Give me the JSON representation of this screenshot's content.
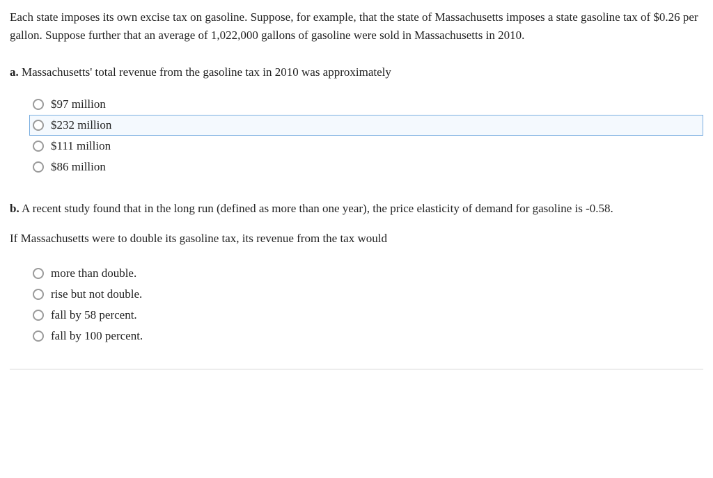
{
  "intro": "Each state imposes its own excise tax on gasoline. Suppose, for example, that the state of Massachusetts imposes a state gasoline tax of $0.26 per gallon. Suppose further that an average of 1,022,000 gallons of gasoline were sold in Massachusetts in 2010.",
  "questions": {
    "a": {
      "prefix": "a.",
      "prompt": " Massachusetts' total revenue from the gasoline tax in 2010 was approximately",
      "options": [
        {
          "label": "$97 million",
          "highlighted": false
        },
        {
          "label": "$232 million",
          "highlighted": true
        },
        {
          "label": "$111 million",
          "highlighted": false
        },
        {
          "label": "$86 million",
          "highlighted": false
        }
      ]
    },
    "b": {
      "prefix": "b.",
      "prompt": " A recent study found that in the long run (defined as more than one year), the price elasticity of demand for gasoline is -0.58.",
      "subtext": "If Massachusetts were to double its gasoline tax, its revenue from the tax would",
      "options": [
        {
          "label": "more than double.",
          "highlighted": false
        },
        {
          "label": "rise but not double.",
          "highlighted": false
        },
        {
          "label": "fall by 58 percent.",
          "highlighted": false
        },
        {
          "label": "fall by 100 percent.",
          "highlighted": false
        }
      ]
    }
  },
  "styles": {
    "highlight_border": "#7aaee0",
    "highlight_bg": "#f4f9fe",
    "radio_border": "#9a9a9a",
    "text_color": "#222222"
  }
}
